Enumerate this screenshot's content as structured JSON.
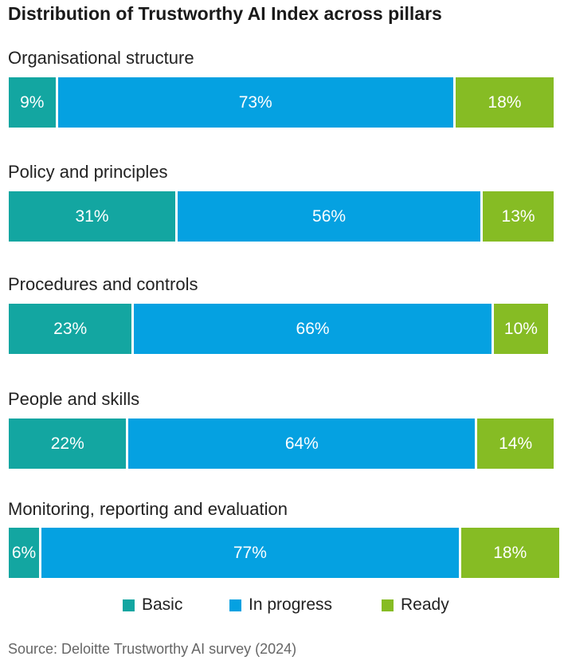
{
  "chart_data": {
    "type": "bar",
    "orientation": "horizontal-stacked-100",
    "title": "Distribution of Trustworthy AI Index across pillars",
    "categories": [
      "Organisational structure",
      "Policy and principles",
      "Procedures and controls",
      "People and skills",
      "Monitoring, reporting and evaluation"
    ],
    "series": [
      {
        "name": "Basic",
        "color": "#13a6a1",
        "values": [
          9,
          31,
          23,
          22,
          6
        ]
      },
      {
        "name": "In progress",
        "color": "#05a1e1",
        "values": [
          73,
          56,
          66,
          64,
          77
        ]
      },
      {
        "name": "Ready",
        "color": "#86bc24",
        "values": [
          18,
          13,
          10,
          14,
          18
        ]
      }
    ],
    "value_suffix": "%",
    "xlim": [
      0,
      100
    ],
    "legend_position": "bottom-center"
  },
  "source": "Source: Deloitte Trustworthy AI survey (2024)"
}
